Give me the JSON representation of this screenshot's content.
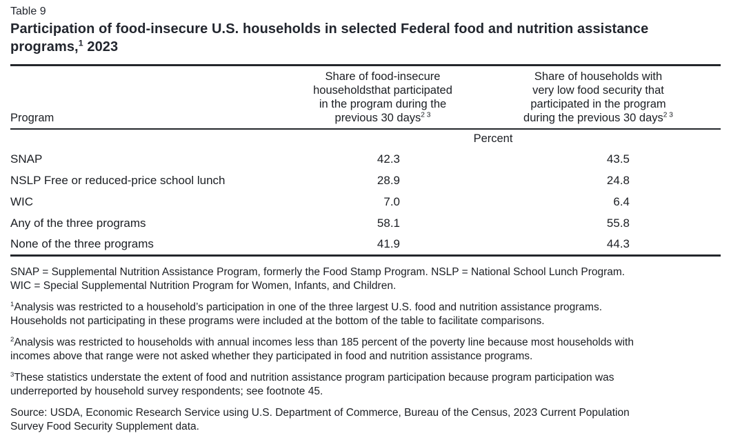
{
  "header": {
    "label": "Table 9",
    "title_main": "Participation of food-insecure U.S. households in selected Federal food and nutrition assistance\nprograms,",
    "title_sup": "1",
    "title_year": " 2023"
  },
  "table": {
    "program_header": "Program",
    "col1_header": "Share of food-insecure\nhouseholdsthat participated\nin the program during the\nprevious 30 days",
    "col1_sup": "2 3",
    "col2_header": "Share of households with\nvery low food security that\nparticipated in the program\nduring the previous 30 days",
    "col2_sup": "2 3",
    "unit_label": "Percent",
    "rows": [
      {
        "program": "SNAP",
        "food_insecure": "42.3",
        "very_low": "43.5"
      },
      {
        "program": "NSLP Free or reduced-price school lunch",
        "food_insecure": "28.9",
        "very_low": "24.8"
      },
      {
        "program": "WIC",
        "food_insecure": "7.0",
        "very_low": "6.4"
      },
      {
        "program": "Any of the three programs",
        "food_insecure": "58.1",
        "very_low": "55.8"
      },
      {
        "program": "None of the three programs",
        "food_insecure": "41.9",
        "very_low": "44.3"
      }
    ]
  },
  "footnotes": {
    "abbreviations": "SNAP = Supplemental Nutrition Assistance Program, formerly the Food Stamp Program. NSLP = National School Lunch Program.\nWIC = Special Supplemental Nutrition Program for Women, Infants, and Children.",
    "fn1": {
      "sup": "1",
      "text": "Analysis was restricted to a household’s participation in one of the three largest U.S. food and nutrition assistance programs.\nHouseholds not participating in these programs were included at the bottom of the table to facilitate comparisons."
    },
    "fn2": {
      "sup": "2",
      "text": "Analysis was restricted to households with annual incomes less than 185 percent of the poverty line because most households with\nincomes above that range were not asked whether they participated in food and nutrition assistance programs."
    },
    "fn3": {
      "sup": "3",
      "text": "These statistics understate the extent of food and nutrition assistance program participation because program participation was\nunderreported by household survey respondents; see footnote 45."
    },
    "source": "Source: USDA, Economic Research Service using U.S. Department of Commerce, Bureau of the Census, 2023 Current Population\nSurvey Food Security Supplement data."
  }
}
